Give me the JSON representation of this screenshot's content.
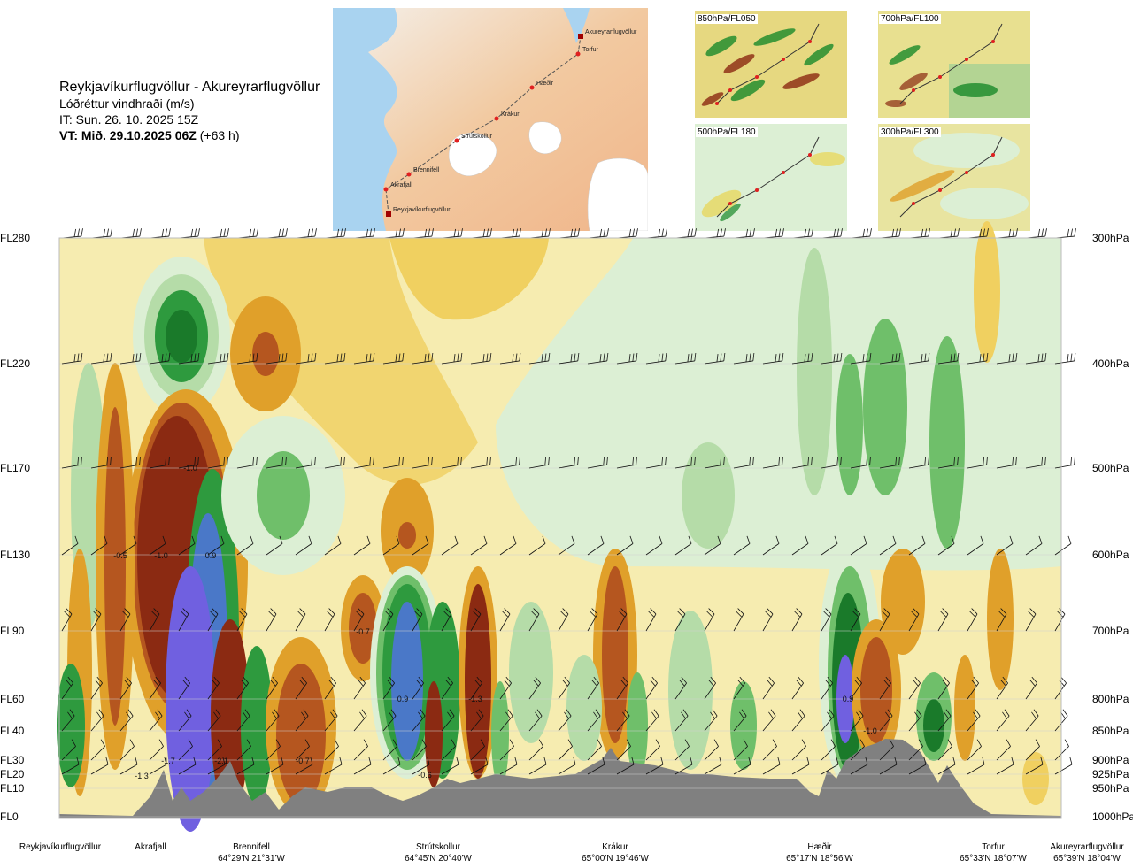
{
  "title": {
    "route": "Reykjavíkurflugvöllur - Akureyrarflugvöllur",
    "quantity": "Lóðréttur vindhraði (m/s)",
    "it": "IT: Sun. 26. 10. 2025 15Z",
    "vt_bold": "VT: Mið. 29.10.2025 06Z",
    "vt_rest": "(+63 h)"
  },
  "map": {
    "points": [
      "Akureyrarflugvöllur",
      "Torfur",
      "Hæðir",
      "Krákur",
      "Strútskollur",
      "Brennifell",
      "Akrafjall",
      "Reykjavíkurflugvöllur"
    ]
  },
  "thumbnails": [
    "850hPa/FL050",
    "700hPa/FL100",
    "500hPa/FL180",
    "300hPa/FL300"
  ],
  "chart_data": {
    "type": "heatmap",
    "title": "Lóðréttur vindhraði (m/s)",
    "y_levels": [
      {
        "fl": "FL280",
        "hpa": "300hPa"
      },
      {
        "fl": "FL220",
        "hpa": "400hPa"
      },
      {
        "fl": "FL170",
        "hpa": "500hPa"
      },
      {
        "fl": "FL130",
        "hpa": "600hPa"
      },
      {
        "fl": "FL90",
        "hpa": "700hPa"
      },
      {
        "fl": "FL60",
        "hpa": "800hPa"
      },
      {
        "fl": "FL40",
        "hpa": "850hPa"
      },
      {
        "fl": "FL30",
        "hpa": "900hPa"
      },
      {
        "fl": "FL20",
        "hpa": "925hPa"
      },
      {
        "fl": "FL10",
        "hpa": "950hPa"
      },
      {
        "fl": "FL0",
        "hpa": "1000hPa"
      }
    ],
    "x_points": [
      {
        "name": "Reykjavíkurflugvöllur",
        "coord": ""
      },
      {
        "name": "Akrafjall",
        "coord": ""
      },
      {
        "name": "Brennifell",
        "coord": "64°29'N 21°31'W"
      },
      {
        "name": "Strútskollur",
        "coord": "64°45'N 20°40'W"
      },
      {
        "name": "Krákur",
        "coord": "65°00'N 19°46'W"
      },
      {
        "name": "Hæðir",
        "coord": "65°17'N 18°56'W"
      },
      {
        "name": "Torfur",
        "coord": "65°33'N 18°07'W"
      },
      {
        "name": "Akureyrarflugvöllur",
        "coord": "65°39'N 18°04'W"
      }
    ],
    "value_labels": [
      "-0.5",
      "-1.0",
      "0.9",
      "-1.0",
      "-1.7",
      "-1.3",
      "-2.1",
      "-0.7",
      "-0.7",
      "0.9",
      "-1.3",
      "-0.6",
      "0.9",
      "-1.0"
    ],
    "colors": {
      "strong_down": "#8b2a12",
      "down": "#b5561f",
      "mod_down": "#e0a02a",
      "weak_down": "#f0d060",
      "very_weak_down": "#f6ecb0",
      "neutral": "#ffffff",
      "very_weak_up": "#dcefd4",
      "weak_up": "#b5dca8",
      "mod_up": "#6fbf6a",
      "up": "#2e9a3e",
      "strong_up": "#1a7a2a",
      "very_strong_up": "#4a78c8",
      "extreme_up": "#7060e0",
      "terrain": "#808080"
    }
  }
}
